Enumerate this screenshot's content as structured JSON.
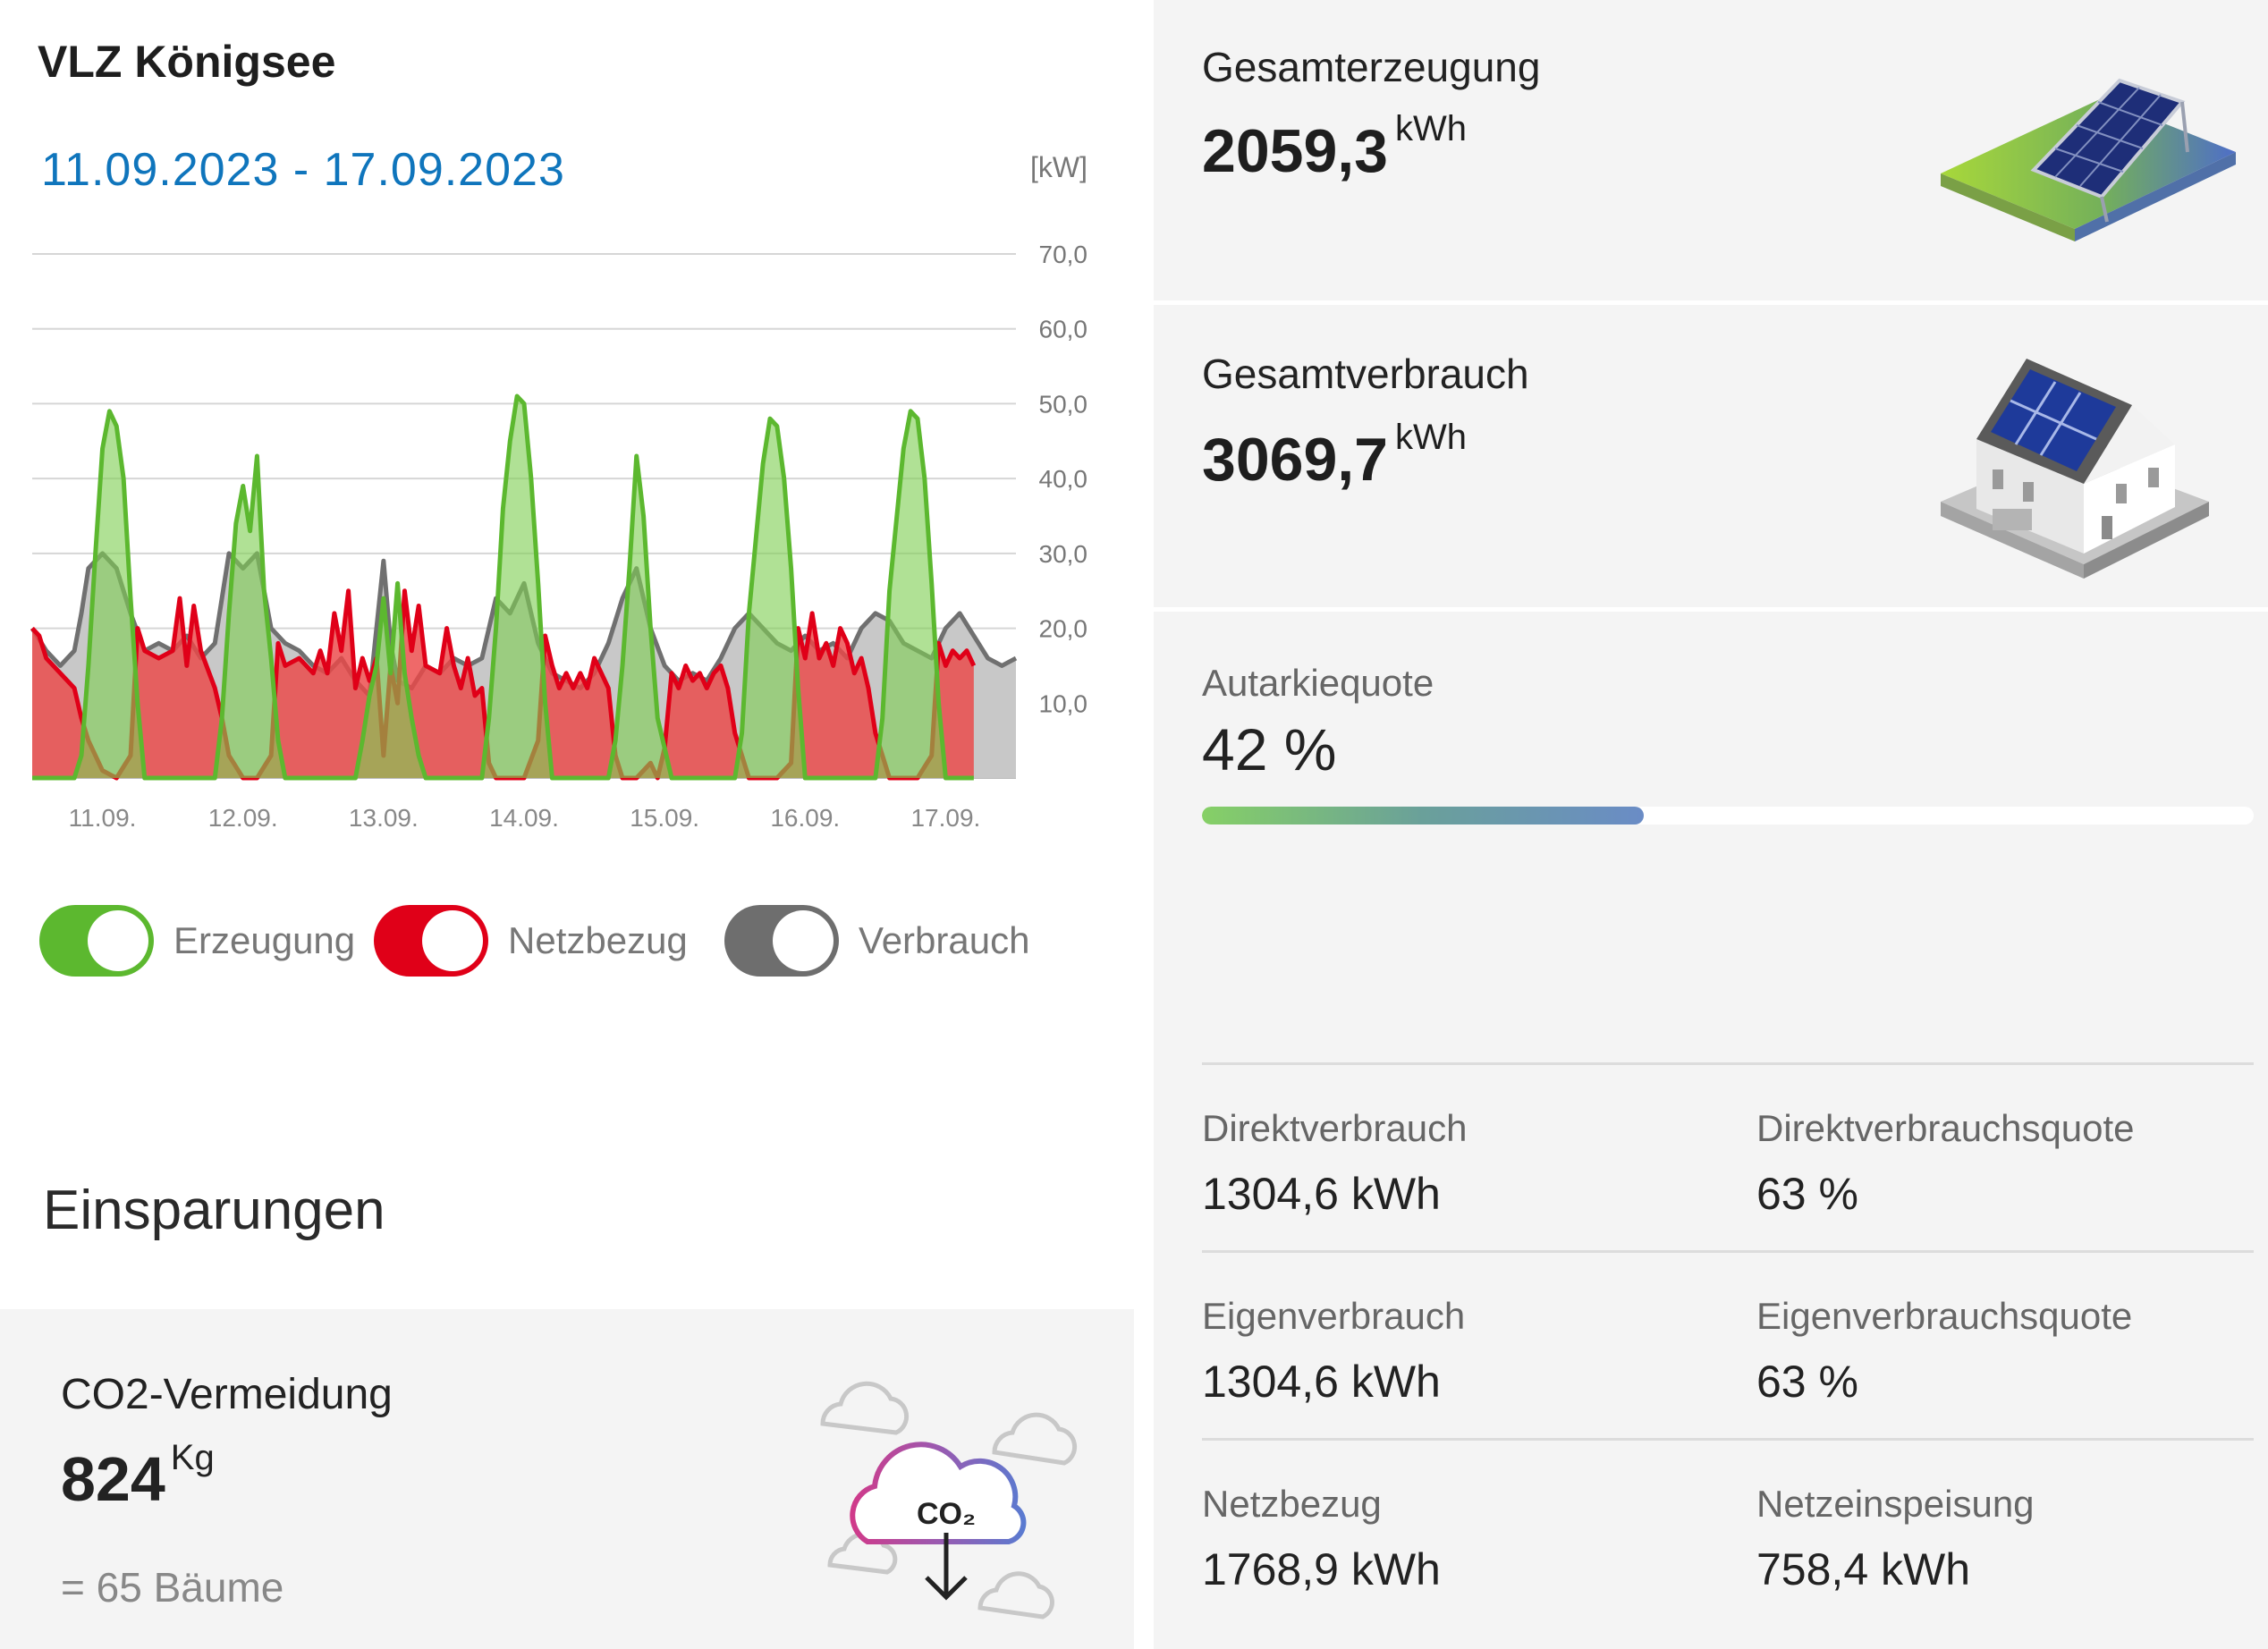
{
  "site": {
    "title": "VLZ Königsee"
  },
  "chart_data": {
    "type": "area",
    "title": "",
    "date_range": "11.09.2023 - 17.09.2023",
    "unit": "[kW]",
    "ylim": [
      0,
      70
    ],
    "y_ticks": [
      "70,0",
      "60,0",
      "50,0",
      "40,0",
      "30,0",
      "20,0",
      "10,0"
    ],
    "y_tick_values": [
      70,
      60,
      50,
      40,
      30,
      20,
      10
    ],
    "x_ticks": [
      "11.09.",
      "12.09.",
      "13.09.",
      "14.09.",
      "15.09.",
      "16.09.",
      "17.09."
    ],
    "x_range_days": [
      0,
      7
    ],
    "grid": "horizontal",
    "series": [
      {
        "name": "Verbrauch",
        "color": "#707070",
        "points": [
          [
            0.0,
            20
          ],
          [
            0.1,
            17
          ],
          [
            0.2,
            15
          ],
          [
            0.3,
            17
          ],
          [
            0.35,
            22
          ],
          [
            0.4,
            28
          ],
          [
            0.5,
            30
          ],
          [
            0.6,
            28
          ],
          [
            0.7,
            22
          ],
          [
            0.8,
            17
          ],
          [
            0.9,
            18
          ],
          [
            1.0,
            17
          ],
          [
            1.1,
            19
          ],
          [
            1.2,
            16
          ],
          [
            1.3,
            18
          ],
          [
            1.4,
            30
          ],
          [
            1.5,
            28
          ],
          [
            1.6,
            30
          ],
          [
            1.7,
            20
          ],
          [
            1.8,
            18
          ],
          [
            1.9,
            17
          ],
          [
            2.0,
            15
          ],
          [
            2.1,
            14
          ],
          [
            2.2,
            16
          ],
          [
            2.3,
            13
          ],
          [
            2.4,
            11
          ],
          [
            2.5,
            29
          ],
          [
            2.55,
            18
          ],
          [
            2.6,
            13
          ],
          [
            2.7,
            12
          ],
          [
            2.8,
            15
          ],
          [
            2.9,
            14
          ],
          [
            3.0,
            16
          ],
          [
            3.1,
            15
          ],
          [
            3.2,
            16
          ],
          [
            3.3,
            24
          ],
          [
            3.4,
            22
          ],
          [
            3.5,
            26
          ],
          [
            3.6,
            18
          ],
          [
            3.7,
            14
          ],
          [
            3.8,
            13
          ],
          [
            3.9,
            12
          ],
          [
            4.0,
            14
          ],
          [
            4.1,
            18
          ],
          [
            4.2,
            24
          ],
          [
            4.3,
            28
          ],
          [
            4.4,
            20
          ],
          [
            4.5,
            15
          ],
          [
            4.6,
            13
          ],
          [
            4.7,
            14
          ],
          [
            4.8,
            13
          ],
          [
            4.9,
            16
          ],
          [
            5.0,
            20
          ],
          [
            5.1,
            22
          ],
          [
            5.2,
            20
          ],
          [
            5.3,
            18
          ],
          [
            5.4,
            17
          ],
          [
            5.5,
            19
          ],
          [
            5.6,
            17
          ],
          [
            5.7,
            18
          ],
          [
            5.8,
            16
          ],
          [
            5.9,
            20
          ],
          [
            6.0,
            22
          ],
          [
            6.1,
            21
          ],
          [
            6.2,
            18
          ],
          [
            6.3,
            17
          ],
          [
            6.4,
            16
          ],
          [
            6.5,
            20
          ],
          [
            6.6,
            22
          ],
          [
            6.7,
            19
          ],
          [
            6.8,
            16
          ],
          [
            6.9,
            15
          ],
          [
            7.0,
            16
          ]
        ]
      },
      {
        "name": "Netzbezug",
        "color": "#e00018",
        "points": [
          [
            0.0,
            20
          ],
          [
            0.05,
            19
          ],
          [
            0.1,
            16
          ],
          [
            0.2,
            14
          ],
          [
            0.3,
            12
          ],
          [
            0.35,
            8
          ],
          [
            0.4,
            5
          ],
          [
            0.5,
            1
          ],
          [
            0.6,
            0
          ],
          [
            0.7,
            3
          ],
          [
            0.75,
            20
          ],
          [
            0.8,
            17
          ],
          [
            0.9,
            16
          ],
          [
            1.0,
            17
          ],
          [
            1.05,
            24
          ],
          [
            1.1,
            15
          ],
          [
            1.15,
            23
          ],
          [
            1.2,
            17
          ],
          [
            1.3,
            12
          ],
          [
            1.35,
            8
          ],
          [
            1.4,
            3
          ],
          [
            1.5,
            0
          ],
          [
            1.6,
            0
          ],
          [
            1.7,
            3
          ],
          [
            1.75,
            18
          ],
          [
            1.8,
            15
          ],
          [
            1.9,
            16
          ],
          [
            2.0,
            14
          ],
          [
            2.05,
            17
          ],
          [
            2.1,
            14
          ],
          [
            2.15,
            22
          ],
          [
            2.2,
            17
          ],
          [
            2.25,
            25
          ],
          [
            2.3,
            12
          ],
          [
            2.35,
            16
          ],
          [
            2.4,
            13
          ],
          [
            2.45,
            16
          ],
          [
            2.5,
            3
          ],
          [
            2.55,
            15
          ],
          [
            2.6,
            10
          ],
          [
            2.65,
            25
          ],
          [
            2.7,
            17
          ],
          [
            2.75,
            23
          ],
          [
            2.8,
            15
          ],
          [
            2.9,
            14
          ],
          [
            2.95,
            20
          ],
          [
            3.0,
            15
          ],
          [
            3.05,
            12
          ],
          [
            3.1,
            16
          ],
          [
            3.15,
            11
          ],
          [
            3.2,
            12
          ],
          [
            3.25,
            2
          ],
          [
            3.3,
            0
          ],
          [
            3.4,
            0
          ],
          [
            3.5,
            0
          ],
          [
            3.6,
            5
          ],
          [
            3.65,
            19
          ],
          [
            3.7,
            15
          ],
          [
            3.75,
            12
          ],
          [
            3.8,
            14
          ],
          [
            3.85,
            12
          ],
          [
            3.9,
            14
          ],
          [
            3.95,
            12
          ],
          [
            4.0,
            16
          ],
          [
            4.05,
            14
          ],
          [
            4.1,
            12
          ],
          [
            4.15,
            3
          ],
          [
            4.2,
            0
          ],
          [
            4.3,
            0
          ],
          [
            4.4,
            2
          ],
          [
            4.45,
            0
          ],
          [
            4.5,
            4
          ],
          [
            4.55,
            14
          ],
          [
            4.6,
            12
          ],
          [
            4.65,
            15
          ],
          [
            4.7,
            13
          ],
          [
            4.75,
            14
          ],
          [
            4.8,
            12
          ],
          [
            4.85,
            14
          ],
          [
            4.9,
            15
          ],
          [
            4.95,
            12
          ],
          [
            5.0,
            6
          ],
          [
            5.1,
            0
          ],
          [
            5.2,
            0
          ],
          [
            5.3,
            0
          ],
          [
            5.4,
            2
          ],
          [
            5.45,
            20
          ],
          [
            5.5,
            16
          ],
          [
            5.55,
            22
          ],
          [
            5.6,
            16
          ],
          [
            5.65,
            18
          ],
          [
            5.7,
            15
          ],
          [
            5.75,
            20
          ],
          [
            5.8,
            18
          ],
          [
            5.85,
            14
          ],
          [
            5.9,
            16
          ],
          [
            5.95,
            12
          ],
          [
            6.0,
            6
          ],
          [
            6.1,
            0
          ],
          [
            6.2,
            0
          ],
          [
            6.3,
            0
          ],
          [
            6.4,
            3
          ],
          [
            6.45,
            18
          ],
          [
            6.5,
            15
          ],
          [
            6.55,
            17
          ],
          [
            6.6,
            16
          ],
          [
            6.65,
            17
          ],
          [
            6.7,
            15
          ]
        ]
      },
      {
        "name": "Erzeugung",
        "color": "#5cb82f",
        "points": [
          [
            0.0,
            0
          ],
          [
            0.3,
            0
          ],
          [
            0.35,
            3
          ],
          [
            0.4,
            15
          ],
          [
            0.45,
            30
          ],
          [
            0.5,
            44
          ],
          [
            0.55,
            49
          ],
          [
            0.6,
            47
          ],
          [
            0.65,
            40
          ],
          [
            0.7,
            24
          ],
          [
            0.75,
            10
          ],
          [
            0.8,
            0
          ],
          [
            1.0,
            0
          ],
          [
            1.3,
            0
          ],
          [
            1.35,
            8
          ],
          [
            1.4,
            22
          ],
          [
            1.45,
            34
          ],
          [
            1.5,
            39
          ],
          [
            1.55,
            33
          ],
          [
            1.6,
            43
          ],
          [
            1.65,
            25
          ],
          [
            1.7,
            16
          ],
          [
            1.75,
            5
          ],
          [
            1.8,
            0
          ],
          [
            2.3,
            0
          ],
          [
            2.35,
            5
          ],
          [
            2.4,
            11
          ],
          [
            2.45,
            15
          ],
          [
            2.5,
            24
          ],
          [
            2.55,
            14
          ],
          [
            2.6,
            26
          ],
          [
            2.65,
            14
          ],
          [
            2.7,
            8
          ],
          [
            2.75,
            3
          ],
          [
            2.8,
            0
          ],
          [
            3.2,
            0
          ],
          [
            3.25,
            8
          ],
          [
            3.3,
            20
          ],
          [
            3.35,
            36
          ],
          [
            3.4,
            45
          ],
          [
            3.45,
            51
          ],
          [
            3.5,
            50
          ],
          [
            3.55,
            40
          ],
          [
            3.6,
            26
          ],
          [
            3.65,
            10
          ],
          [
            3.7,
            0
          ],
          [
            4.0,
            0
          ],
          [
            4.1,
            0
          ],
          [
            4.15,
            5
          ],
          [
            4.2,
            15
          ],
          [
            4.25,
            28
          ],
          [
            4.3,
            43
          ],
          [
            4.35,
            35
          ],
          [
            4.4,
            20
          ],
          [
            4.45,
            8
          ],
          [
            4.5,
            4
          ],
          [
            4.55,
            0
          ],
          [
            5.0,
            0
          ],
          [
            5.05,
            6
          ],
          [
            5.1,
            22
          ],
          [
            5.2,
            42
          ],
          [
            5.25,
            48
          ],
          [
            5.3,
            47
          ],
          [
            5.35,
            40
          ],
          [
            5.4,
            28
          ],
          [
            5.45,
            12
          ],
          [
            5.5,
            0
          ],
          [
            6.0,
            0
          ],
          [
            6.05,
            8
          ],
          [
            6.1,
            25
          ],
          [
            6.2,
            44
          ],
          [
            6.25,
            49
          ],
          [
            6.3,
            48
          ],
          [
            6.35,
            40
          ],
          [
            6.4,
            26
          ],
          [
            6.45,
            10
          ],
          [
            6.5,
            0
          ],
          [
            6.7,
            0
          ]
        ]
      }
    ]
  },
  "legend": {
    "erzeugung": {
      "label": "Erzeugung",
      "color": "#5cb82f"
    },
    "netzbezug": {
      "label": "Netzbezug",
      "color": "#e00018"
    },
    "verbrauch": {
      "label": "Verbrauch",
      "color": "#6e6e6e"
    }
  },
  "savings": {
    "title": "Einsparungen",
    "co2_label": "CO2-Vermeidung",
    "co2_value": "824",
    "co2_unit": "Kg",
    "trees": "= 65 Bäume",
    "co2_icon_text": "CO₂",
    "icon": "co2-cloud-icon"
  },
  "stats": {
    "generation": {
      "label": "Gesamterzeugung",
      "value": "2059,3",
      "unit": "kWh",
      "icon": "solar-panel-icon"
    },
    "consumption": {
      "label": "Gesamtverbrauch",
      "value": "3069,7",
      "unit": "kWh",
      "icon": "house-solar-icon"
    },
    "autarky": {
      "label": "Autarkiequote",
      "value": "42 %",
      "fraction": 0.42
    },
    "details": [
      [
        {
          "label": "Direktverbrauch",
          "value": "1304,6 kWh"
        },
        {
          "label": "Direktverbrauchsquote",
          "value": "63 %"
        }
      ],
      [
        {
          "label": "Eigenverbrauch",
          "value": "1304,6 kWh"
        },
        {
          "label": "Eigenverbrauchsquote",
          "value": "63 %"
        }
      ],
      [
        {
          "label": "Netzbezug",
          "value": "1768,9 kWh"
        },
        {
          "label": "Netzeinspeisung",
          "value": "758,4 kWh"
        }
      ]
    ]
  }
}
